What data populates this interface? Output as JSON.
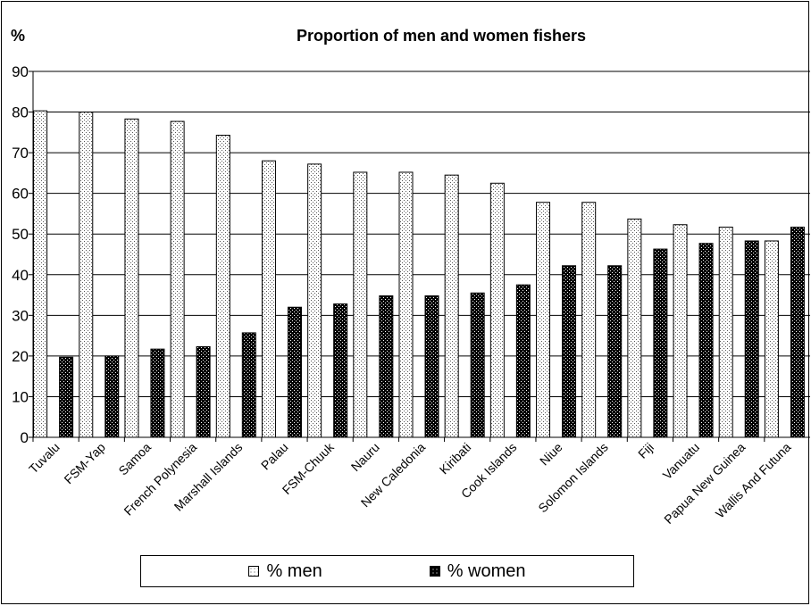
{
  "chart_data": {
    "type": "bar",
    "title": "Proportion of men and women fishers",
    "ylabel": "%",
    "xlabel": "",
    "ylim": [
      0,
      90
    ],
    "yticks": [
      0,
      10,
      20,
      30,
      40,
      50,
      60,
      70,
      80,
      90
    ],
    "grid": true,
    "legend_position": "bottom",
    "categories": [
      "Tuvalu",
      "FSM-Yap",
      "Samoa",
      "French Polynesia",
      "Marshall Islands",
      "Palau",
      "FSM-Chuuk",
      "Nauru",
      "New Caledonia",
      "Kiribati",
      "Cook Islands",
      "Niue",
      "Solomon Islands",
      "Fiji",
      "Vanuatu",
      "Papua New Guinea",
      "Wallis And Futuna"
    ],
    "series": [
      {
        "name": "% men",
        "color": "#ffffff",
        "values": [
          80.3,
          80.0,
          78.3,
          77.7,
          74.3,
          68.0,
          67.2,
          65.2,
          65.2,
          64.5,
          62.5,
          57.8,
          57.8,
          53.7,
          52.3,
          51.7,
          48.3
        ]
      },
      {
        "name": "% women",
        "color": "#000000",
        "values": [
          19.7,
          20.0,
          21.7,
          22.3,
          25.7,
          32.0,
          32.8,
          34.8,
          34.8,
          35.5,
          37.5,
          42.2,
          42.2,
          46.3,
          47.7,
          48.3,
          51.7
        ]
      }
    ]
  }
}
